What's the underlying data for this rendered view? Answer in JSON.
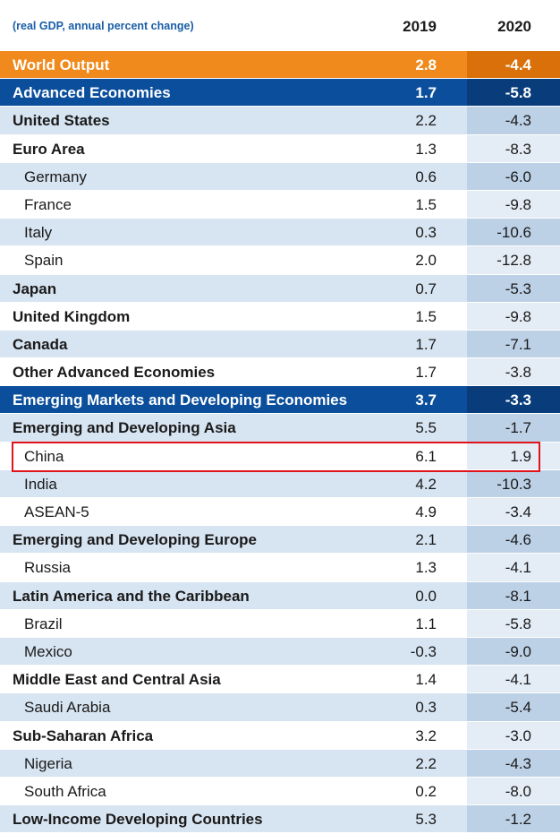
{
  "chart_data": {
    "type": "table",
    "caption": "(real GDP, annual percent change)",
    "columns": [
      "2019",
      "2020"
    ],
    "rows": [
      {
        "name": "World Output",
        "v2019": "2.8",
        "v2020": "-4.4",
        "style": "world"
      },
      {
        "name": "Advanced Economies",
        "v2019": "1.7",
        "v2020": "-5.8",
        "style": "blue"
      },
      {
        "name": "United States",
        "v2019": "2.2",
        "v2020": "-4.3",
        "style": "bold"
      },
      {
        "name": "Euro Area",
        "v2019": "1.3",
        "v2020": "-8.3",
        "style": "bold"
      },
      {
        "name": "Germany",
        "v2019": "0.6",
        "v2020": "-6.0",
        "style": "indent"
      },
      {
        "name": "France",
        "v2019": "1.5",
        "v2020": "-9.8",
        "style": "indent"
      },
      {
        "name": "Italy",
        "v2019": "0.3",
        "v2020": "-10.6",
        "style": "indent"
      },
      {
        "name": "Spain",
        "v2019": "2.0",
        "v2020": "-12.8",
        "style": "indent"
      },
      {
        "name": "Japan",
        "v2019": "0.7",
        "v2020": "-5.3",
        "style": "bold"
      },
      {
        "name": "United Kingdom",
        "v2019": "1.5",
        "v2020": "-9.8",
        "style": "bold"
      },
      {
        "name": "Canada",
        "v2019": "1.7",
        "v2020": "-7.1",
        "style": "bold"
      },
      {
        "name": "Other Advanced Economies",
        "v2019": "1.7",
        "v2020": "-3.8",
        "style": "bold"
      },
      {
        "name": "Emerging Markets and Developing Economies",
        "v2019": "3.7",
        "v2020": "-3.3",
        "style": "blue"
      },
      {
        "name": "Emerging and Developing Asia",
        "v2019": "5.5",
        "v2020": "-1.7",
        "style": "bold"
      },
      {
        "name": "China",
        "v2019": "6.1",
        "v2020": "1.9",
        "style": "indent",
        "highlighted": true
      },
      {
        "name": "India",
        "v2019": "4.2",
        "v2020": "-10.3",
        "style": "indent"
      },
      {
        "name": "ASEAN-5",
        "v2019": "4.9",
        "v2020": "-3.4",
        "style": "indent"
      },
      {
        "name": "Emerging and Developing Europe",
        "v2019": "2.1",
        "v2020": "-4.6",
        "style": "bold"
      },
      {
        "name": "Russia",
        "v2019": "1.3",
        "v2020": "-4.1",
        "style": "indent"
      },
      {
        "name": "Latin America and the Caribbean",
        "v2019": "0.0",
        "v2020": "-8.1",
        "style": "bold"
      },
      {
        "name": "Brazil",
        "v2019": "1.1",
        "v2020": "-5.8",
        "style": "indent"
      },
      {
        "name": "Mexico",
        "v2019": "-0.3",
        "v2020": "-9.0",
        "style": "indent"
      },
      {
        "name": "Middle East and Central Asia",
        "v2019": "1.4",
        "v2020": "-4.1",
        "style": "bold"
      },
      {
        "name": "Saudi Arabia",
        "v2019": "0.3",
        "v2020": "-5.4",
        "style": "indent"
      },
      {
        "name": "Sub-Saharan Africa",
        "v2019": "3.2",
        "v2020": "-3.0",
        "style": "bold"
      },
      {
        "name": "Nigeria",
        "v2019": "2.2",
        "v2020": "-4.3",
        "style": "indent"
      },
      {
        "name": "South Africa",
        "v2019": "0.2",
        "v2020": "-8.0",
        "style": "indent"
      },
      {
        "name": "Low-Income Developing Countries",
        "v2019": "5.3",
        "v2020": "-1.2",
        "style": "bold"
      }
    ]
  },
  "colors": {
    "world_row": "#f08a1c",
    "group_row": "#0b4f9c",
    "caption_text": "#1a5ea8",
    "highlight_border": "#e0141b"
  }
}
